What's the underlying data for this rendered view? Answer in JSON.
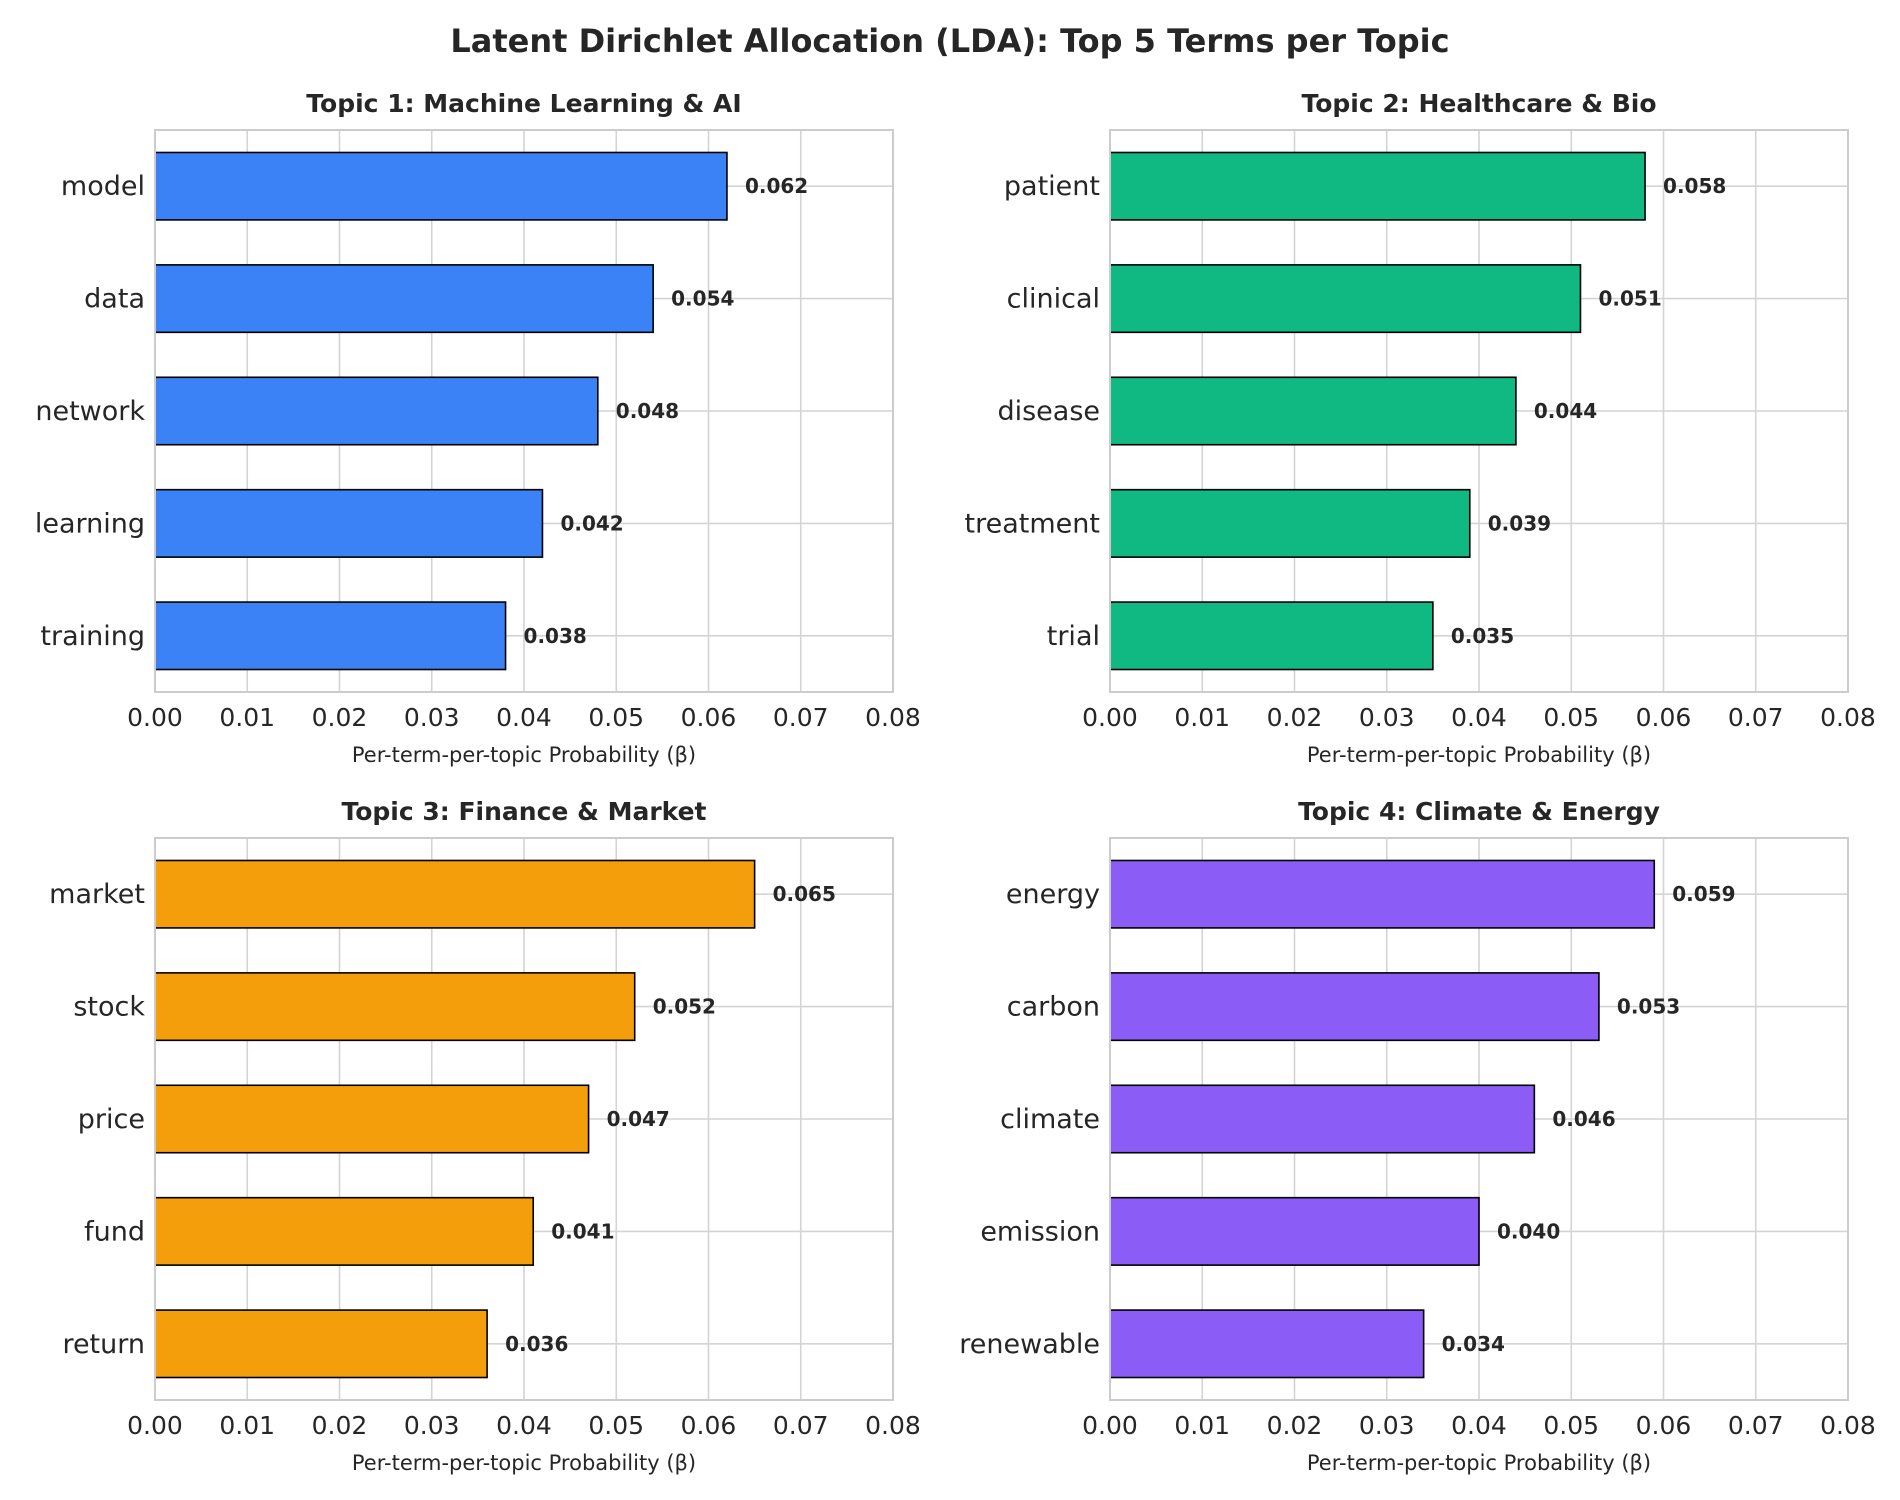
{
  "title": "Latent Dirichlet Allocation (LDA): Top 5 Terms per Topic",
  "chart_data": [
    {
      "type": "bar",
      "orientation": "horizontal",
      "title": "Topic 1: Machine Learning & AI",
      "categories": [
        "model",
        "data",
        "network",
        "learning",
        "training"
      ],
      "values": [
        0.062,
        0.054,
        0.048,
        0.042,
        0.038
      ],
      "value_labels": [
        "0.062",
        "0.054",
        "0.048",
        "0.042",
        "0.038"
      ],
      "color": "#3b82f6",
      "xlabel": "Per-term-per-topic Probability (β)",
      "xlim": [
        0,
        0.08
      ],
      "xticks": [
        "0.00",
        "0.01",
        "0.02",
        "0.03",
        "0.04",
        "0.05",
        "0.06",
        "0.07",
        "0.08"
      ],
      "grid": true
    },
    {
      "type": "bar",
      "orientation": "horizontal",
      "title": "Topic 2: Healthcare & Bio",
      "categories": [
        "patient",
        "clinical",
        "disease",
        "treatment",
        "trial"
      ],
      "values": [
        0.058,
        0.051,
        0.044,
        0.039,
        0.035
      ],
      "value_labels": [
        "0.058",
        "0.051",
        "0.044",
        "0.039",
        "0.035"
      ],
      "color": "#10b981",
      "xlabel": "Per-term-per-topic Probability (β)",
      "xlim": [
        0,
        0.08
      ],
      "xticks": [
        "0.00",
        "0.01",
        "0.02",
        "0.03",
        "0.04",
        "0.05",
        "0.06",
        "0.07",
        "0.08"
      ],
      "grid": true
    },
    {
      "type": "bar",
      "orientation": "horizontal",
      "title": "Topic 3: Finance & Market",
      "categories": [
        "market",
        "stock",
        "price",
        "fund",
        "return"
      ],
      "values": [
        0.065,
        0.052,
        0.047,
        0.041,
        0.036
      ],
      "value_labels": [
        "0.065",
        "0.052",
        "0.047",
        "0.041",
        "0.036"
      ],
      "color": "#f59e0b",
      "xlabel": "Per-term-per-topic Probability (β)",
      "xlim": [
        0,
        0.08
      ],
      "xticks": [
        "0.00",
        "0.01",
        "0.02",
        "0.03",
        "0.04",
        "0.05",
        "0.06",
        "0.07",
        "0.08"
      ],
      "grid": true
    },
    {
      "type": "bar",
      "orientation": "horizontal",
      "title": "Topic 4: Climate & Energy",
      "categories": [
        "energy",
        "carbon",
        "climate",
        "emission",
        "renewable"
      ],
      "values": [
        0.059,
        0.053,
        0.046,
        0.04,
        0.034
      ],
      "value_labels": [
        "0.059",
        "0.053",
        "0.046",
        "0.040",
        "0.034"
      ],
      "color": "#8b5cf6",
      "xlabel": "Per-term-per-topic Probability (β)",
      "xlim": [
        0,
        0.08
      ],
      "xticks": [
        "0.00",
        "0.01",
        "0.02",
        "0.03",
        "0.04",
        "0.05",
        "0.06",
        "0.07",
        "0.08"
      ],
      "grid": true
    }
  ]
}
